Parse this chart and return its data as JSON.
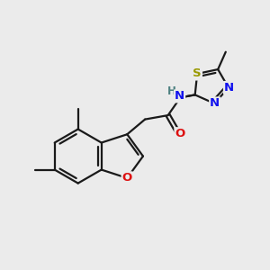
{
  "bg_color": "#ebebeb",
  "bond_color": "#1a1a1a",
  "bond_width": 1.6,
  "atom_colors": {
    "O": "#dd1111",
    "N": "#1111ee",
    "S": "#999900",
    "H": "#4d8080",
    "C": "#1a1a1a"
  },
  "font_size_atom": 9.5,
  "font_size_methyl": 8.5
}
